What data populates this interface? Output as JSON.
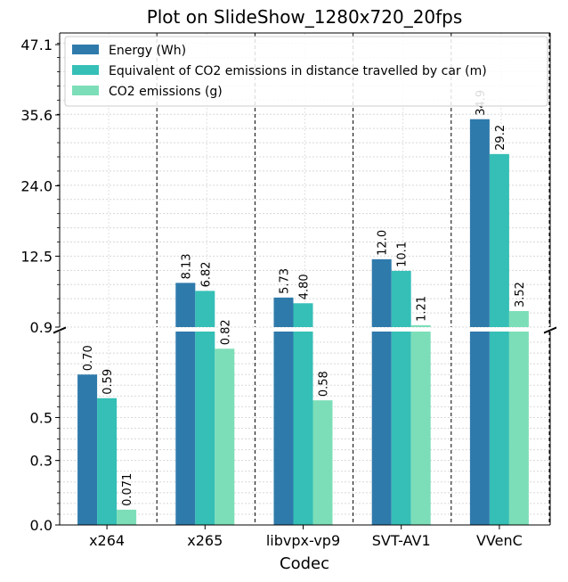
{
  "chart_data": {
    "type": "bar",
    "title": "Plot on SlideShow_1280x720_20fps",
    "xlabel": "Codec",
    "ylabel": "",
    "broken_axis": true,
    "upper_ylim": [
      0.9,
      49.0
    ],
    "upper_yticks": [
      "0.9",
      "12.5",
      "24.0",
      "35.6",
      "47.1"
    ],
    "lower_ylim": [
      0.0,
      0.9
    ],
    "lower_yticks": [
      "0.0",
      "0.3",
      "0.5",
      "0.9"
    ],
    "grid": true,
    "legend_position": "top-right",
    "categories": [
      "x264",
      "x265",
      "libvpx-vp9",
      "SVT-AV1",
      "VVenC"
    ],
    "series": [
      {
        "name": "Energy (Wh)",
        "color": "#2e7aab",
        "values": [
          0.7,
          8.13,
          5.73,
          12.0,
          34.9
        ],
        "labels": [
          "0.70",
          "8.13",
          "5.73",
          "12.0",
          "34.9"
        ]
      },
      {
        "name": "Equivalent of CO2 emissions in distance travelled by car (m)",
        "color": "#35bfb6",
        "values": [
          0.59,
          6.82,
          4.8,
          10.1,
          29.2
        ],
        "labels": [
          "0.59",
          "6.82",
          "4.80",
          "10.1",
          "29.2"
        ]
      },
      {
        "name": "CO2 emissions (g)",
        "color": "#7cdeb8",
        "values": [
          0.071,
          0.82,
          0.58,
          1.21,
          3.52
        ],
        "labels": [
          "0.071",
          "0.82",
          "0.58",
          "1.21",
          "3.52"
        ]
      }
    ]
  }
}
